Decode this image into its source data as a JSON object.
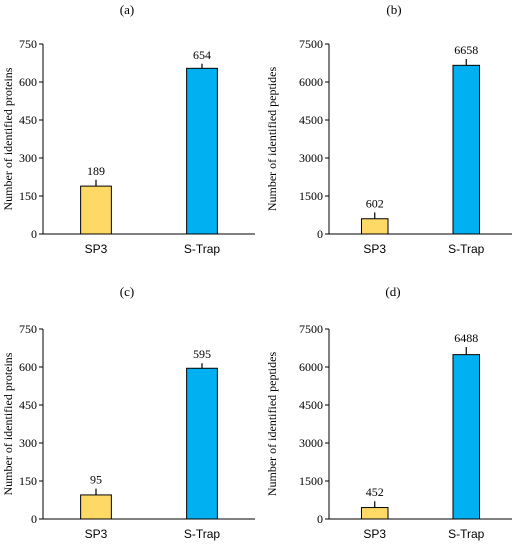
{
  "chart_data": [
    {
      "type": "bar",
      "panel_label": "(a)",
      "categories": [
        "SP3",
        "S-Trap"
      ],
      "values": [
        189,
        654
      ],
      "errors": [
        25,
        18
      ],
      "ylabel": "Number of identified proteins",
      "ylim": [
        0,
        750
      ],
      "yticks": [
        "0",
        "150",
        "300",
        "450",
        "600",
        "750"
      ],
      "bar_colors": [
        "#FFD966",
        "#00B0F0"
      ],
      "grid": false
    },
    {
      "type": "bar",
      "panel_label": "(b)",
      "categories": [
        "SP3",
        "S-Trap"
      ],
      "values": [
        602,
        6658
      ],
      "errors": [
        250,
        250
      ],
      "ylabel": "Number of identified peptides",
      "ylim": [
        0,
        7500
      ],
      "yticks": [
        "0",
        "1500",
        "3000",
        "4500",
        "6000",
        "7500"
      ],
      "bar_colors": [
        "#FFD966",
        "#00B0F0"
      ],
      "grid": false
    },
    {
      "type": "bar",
      "panel_label": "(c)",
      "categories": [
        "SP3",
        "S-Trap"
      ],
      "values": [
        95,
        595
      ],
      "errors": [
        25,
        20
      ],
      "ylabel": "Number of identified proteins",
      "ylim": [
        0,
        750
      ],
      "yticks": [
        "0",
        "150",
        "300",
        "450",
        "600",
        "750"
      ],
      "bar_colors": [
        "#FFD966",
        "#00B0F0"
      ],
      "grid": false
    },
    {
      "type": "bar",
      "panel_label": "(d)",
      "categories": [
        "SP3",
        "S-Trap"
      ],
      "values": [
        452,
        6488
      ],
      "errors": [
        250,
        300
      ],
      "ylabel": "Number of identified peptides",
      "ylim": [
        0,
        7500
      ],
      "yticks": [
        "0",
        "1500",
        "3000",
        "4500",
        "6000",
        "7500"
      ],
      "bar_colors": [
        "#FFD966",
        "#00B0F0"
      ],
      "grid": false
    }
  ]
}
